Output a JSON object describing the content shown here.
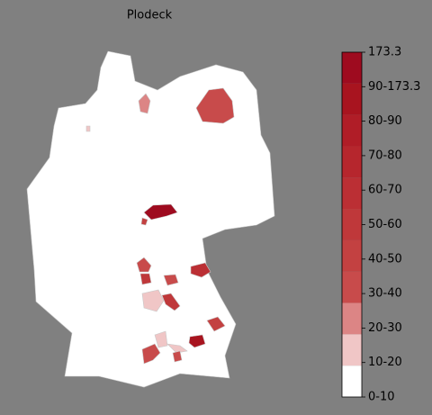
{
  "title": "Plodeck",
  "colorbar": {
    "labels": [
      "173.3",
      "90-173.3",
      "80-90",
      "70-80",
      "60-70",
      "50-60",
      "40-50",
      "30-40",
      "20-30",
      "10-20",
      "0-10"
    ],
    "colors": [
      "#9e0b1f",
      "#a8141f",
      "#b01d27",
      "#b6262d",
      "#bb2f34",
      "#bf383a",
      "#c34141",
      "#c84b4b",
      "#dc8585",
      "#f0c6c6",
      "#ffffff"
    ]
  }
}
